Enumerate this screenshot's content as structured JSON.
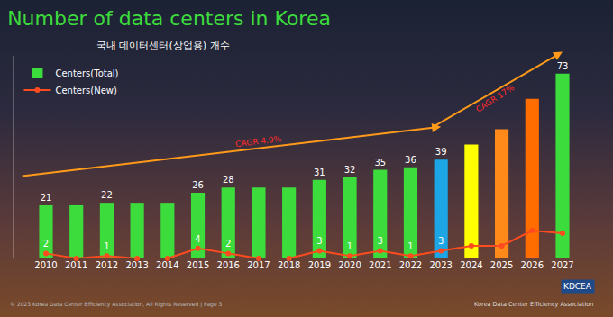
{
  "chart_data": {
    "type": "bar",
    "title": "Number of data centers in Korea",
    "subtitle": "국내 데이터센터(상업용) 개수",
    "categories": [
      "2010",
      "2011",
      "2012",
      "2013",
      "2014",
      "2015",
      "2016",
      "2017",
      "2018",
      "2019",
      "2020",
      "2021",
      "2022",
      "2023",
      "2024",
      "2025",
      "2026",
      "2027"
    ],
    "series": [
      {
        "name": "Centers(Total)",
        "type": "bar",
        "colors": [
          "#3ddc3d",
          "#3ddc3d",
          "#3ddc3d",
          "#3ddc3d",
          "#3ddc3d",
          "#3ddc3d",
          "#3ddc3d",
          "#3ddc3d",
          "#3ddc3d",
          "#3ddc3d",
          "#3ddc3d",
          "#3ddc3d",
          "#3ddc3d",
          "#1ca6e6",
          "#ffff00",
          "#ff8a1a",
          "#ff6d00",
          "#3ddc3d"
        ],
        "values": [
          21,
          21,
          22,
          22,
          22,
          26,
          28,
          28,
          28,
          31,
          32,
          35,
          36,
          39,
          45,
          51,
          63,
          73
        ],
        "value_labels": [
          "21",
          null,
          "22",
          null,
          null,
          "26",
          "28",
          null,
          null,
          "31",
          "32",
          "35",
          "36",
          "39",
          null,
          null,
          null,
          "73"
        ]
      },
      {
        "name": "Centers(New)",
        "type": "line",
        "color": "#ff4b1f",
        "marker": "circle",
        "line_style": "solid",
        "values": [
          2,
          0,
          1,
          0,
          0,
          4,
          2,
          0,
          0,
          3,
          1,
          3,
          1,
          3,
          5,
          5,
          11,
          10
        ],
        "value_labels": [
          "2",
          null,
          "1",
          null,
          null,
          "4",
          "2",
          null,
          null,
          "3",
          "1",
          "3",
          "1",
          "3",
          null,
          null,
          null,
          null
        ]
      }
    ],
    "ylim": [
      0,
      80
    ],
    "tick_labels": "x",
    "data_labels": true,
    "grid": false,
    "legend": "top left",
    "annotations": [
      {
        "text": "CAGR 4.9%"
      },
      {
        "text": "CAGR 17%"
      }
    ],
    "footer": "© 2023 Korea Data Center Efficiency Association, All Rights Reserved | Page 3",
    "logo": "KDCEA",
    "organization": "Korea Data Center Efficiency Association"
  }
}
